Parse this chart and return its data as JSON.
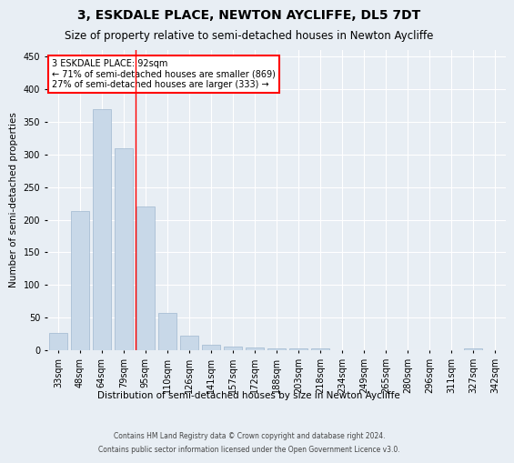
{
  "title": "3, ESKDALE PLACE, NEWTON AYCLIFFE, DL5 7DT",
  "subtitle": "Size of property relative to semi-detached houses in Newton Aycliffe",
  "xlabel": "Distribution of semi-detached houses by size in Newton Aycliffe",
  "ylabel": "Number of semi-detached properties",
  "footnote1": "Contains HM Land Registry data © Crown copyright and database right 2024.",
  "footnote2": "Contains public sector information licensed under the Open Government Licence v3.0.",
  "categories": [
    "33sqm",
    "48sqm",
    "64sqm",
    "79sqm",
    "95sqm",
    "110sqm",
    "126sqm",
    "141sqm",
    "157sqm",
    "172sqm",
    "188sqm",
    "203sqm",
    "218sqm",
    "234sqm",
    "249sqm",
    "265sqm",
    "280sqm",
    "296sqm",
    "311sqm",
    "327sqm",
    "342sqm"
  ],
  "values": [
    27,
    213,
    370,
    310,
    220,
    57,
    23,
    9,
    6,
    4,
    3,
    3,
    3,
    0,
    0,
    0,
    0,
    0,
    0,
    3,
    0
  ],
  "bar_color": "#c8d8e8",
  "bar_edge_color": "#a0b8d0",
  "property_label": "3 ESKDALE PLACE: 92sqm",
  "pct_smaller": 71,
  "count_smaller": 869,
  "pct_larger": 27,
  "count_larger": 333,
  "line_x_index": 3.57,
  "ylim": [
    0,
    460
  ],
  "yticks": [
    0,
    50,
    100,
    150,
    200,
    250,
    300,
    350,
    400,
    450
  ],
  "background_color": "#e8eef4",
  "grid_color": "#ffffff",
  "title_fontsize": 10,
  "subtitle_fontsize": 8.5,
  "axis_label_fontsize": 7.5,
  "tick_fontsize": 7,
  "footnote_fontsize": 5.5
}
